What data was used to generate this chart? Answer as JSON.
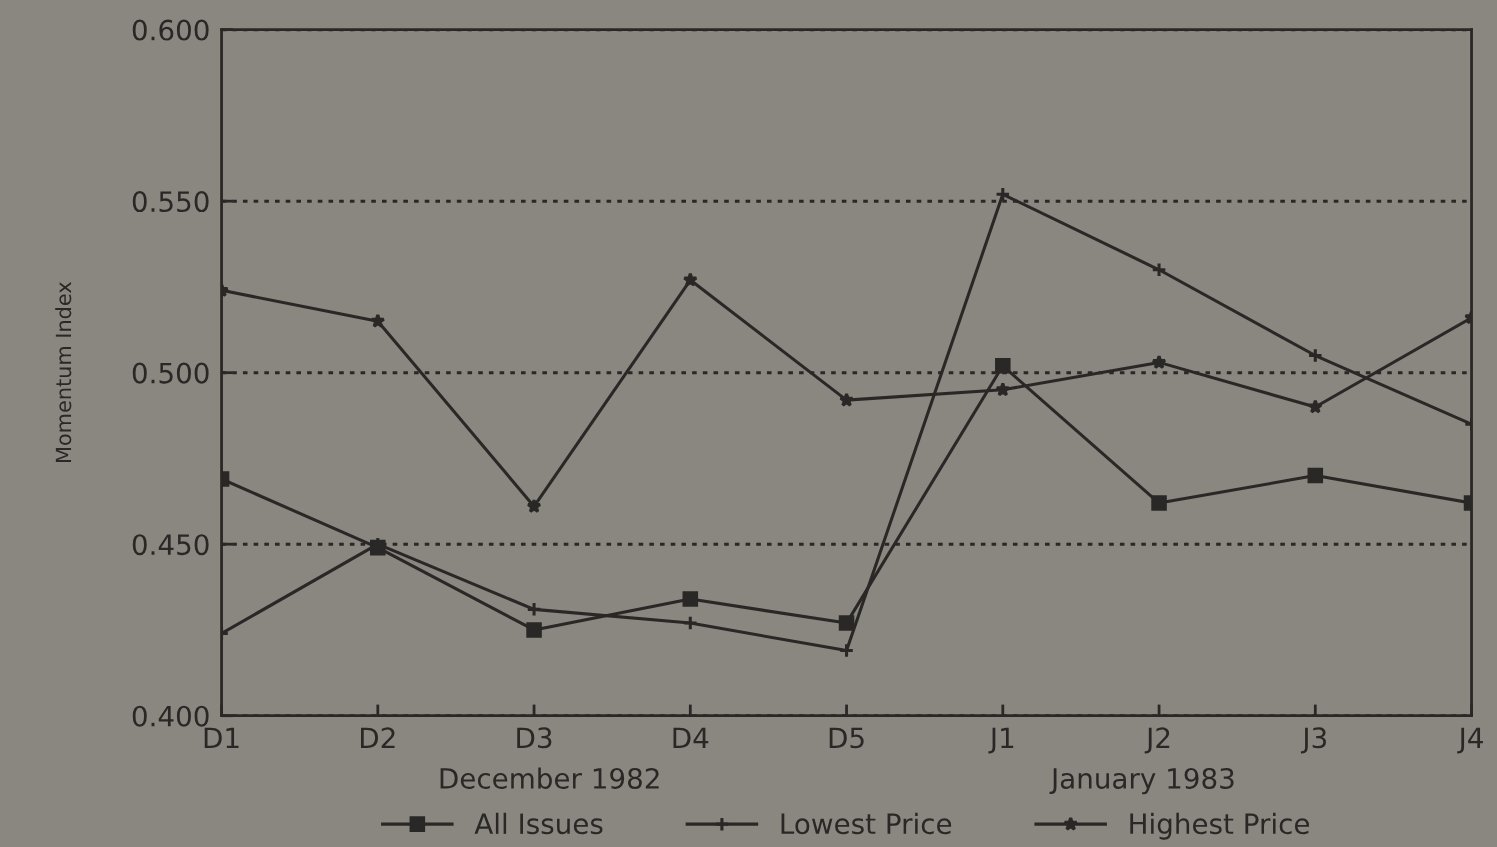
{
  "chart_data": {
    "type": "line",
    "ylabel": "Momentum Index",
    "categories": [
      "D1",
      "D2",
      "D3",
      "D4",
      "D5",
      "J1",
      "J2",
      "J3",
      "J4"
    ],
    "series": [
      {
        "name": "All Issues",
        "color": "#2a2826",
        "marker": "square",
        "values": [
          0.469,
          0.449,
          0.425,
          0.434,
          0.427,
          0.502,
          0.462,
          0.47,
          0.462
        ]
      },
      {
        "name": "Lowest Price",
        "color": "#2a2826",
        "marker": "cross",
        "values": [
          0.424,
          0.45,
          0.431,
          0.427,
          0.419,
          0.552,
          0.53,
          0.505,
          0.485
        ]
      },
      {
        "name": "Highest Price",
        "color": "#2a2826",
        "marker": "star",
        "values": [
          0.524,
          0.515,
          0.461,
          0.527,
          0.492,
          0.495,
          0.503,
          0.49,
          0.516
        ]
      }
    ],
    "ylim": [
      0.4,
      0.6
    ],
    "yticks": [
      {
        "value": 0.4,
        "label": "0.400"
      },
      {
        "value": 0.45,
        "label": "0.450"
      },
      {
        "value": 0.5,
        "label": "0.500"
      },
      {
        "value": 0.55,
        "label": "0.550"
      },
      {
        "value": 0.6,
        "label": "0.600"
      }
    ],
    "grid": "y",
    "legend": "bottom",
    "line_style": "solid",
    "annotations": [
      "December 1982",
      "January 1983"
    ]
  }
}
